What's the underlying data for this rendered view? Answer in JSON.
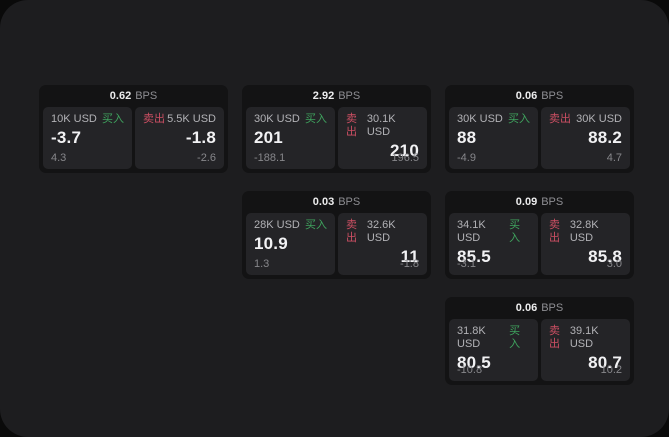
{
  "labels": {
    "bps_unit": "BPS",
    "buy": "买入",
    "sell": "卖出"
  },
  "colors": {
    "surface_bg": "#1d1d1f",
    "card_bg": "#131314",
    "panel_bg": "#242427",
    "buy_green": "#3fa35e",
    "sell_red": "#cc4f63",
    "value_white": "#f2f2f4",
    "muted_gray": "#87878b"
  },
  "cards": [
    {
      "bps": "0.62",
      "buy": {
        "amount": "10K USD",
        "price": "-3.7",
        "sub": "4.3"
      },
      "sell": {
        "amount": "5.5K USD",
        "price": "-1.8",
        "sub": "-2.6"
      }
    },
    {
      "bps": "2.92",
      "buy": {
        "amount": "30K USD",
        "price": "201",
        "sub": "-188.1"
      },
      "sell": {
        "amount": "30.1K USD",
        "price": "210",
        "sub": "196.5"
      }
    },
    {
      "bps": "0.06",
      "buy": {
        "amount": "30K USD",
        "price": "88",
        "sub": "-4.9"
      },
      "sell": {
        "amount": "30K USD",
        "price": "88.2",
        "sub": "4.7"
      }
    },
    {
      "bps": "0.03",
      "buy": {
        "amount": "28K USD",
        "price": "10.9",
        "sub": "1.3"
      },
      "sell": {
        "amount": "32.6K USD",
        "price": "11",
        "sub": "-1.8"
      }
    },
    {
      "bps": "0.09",
      "buy": {
        "amount": "34.1K USD",
        "price": "85.5",
        "sub": "-3.1"
      },
      "sell": {
        "amount": "32.8K USD",
        "price": "85.8",
        "sub": "3.0"
      }
    },
    {
      "bps": "0.06",
      "buy": {
        "amount": "31.8K USD",
        "price": "80.5",
        "sub": "-10.8"
      },
      "sell": {
        "amount": "39.1K USD",
        "price": "80.7",
        "sub": "10.2"
      }
    }
  ]
}
